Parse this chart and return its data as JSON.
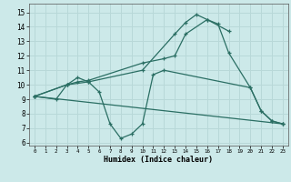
{
  "xlabel": "Humidex (Indice chaleur)",
  "xlim": [
    -0.5,
    23.5
  ],
  "ylim": [
    5.8,
    15.6
  ],
  "xticks": [
    0,
    1,
    2,
    3,
    4,
    5,
    6,
    7,
    8,
    9,
    10,
    11,
    12,
    13,
    14,
    15,
    16,
    17,
    18,
    19,
    20,
    21,
    22,
    23
  ],
  "yticks": [
    6,
    7,
    8,
    9,
    10,
    11,
    12,
    13,
    14,
    15
  ],
  "line_color": "#2a6e63",
  "bg_color": "#cce9e9",
  "grid_color": "#b8d8d8",
  "series": [
    {
      "x": [
        0,
        3,
        4,
        5,
        10,
        13,
        14,
        15,
        16,
        18
      ],
      "y": [
        9.2,
        10.0,
        10.5,
        10.2,
        11.0,
        13.5,
        14.3,
        14.85,
        14.5,
        13.7
      ]
    },
    {
      "x": [
        0,
        2,
        3,
        4,
        5,
        10,
        12,
        13,
        14,
        16,
        17,
        18,
        20,
        21,
        22,
        23
      ],
      "y": [
        9.2,
        9.0,
        10.0,
        10.2,
        10.3,
        11.5,
        11.8,
        12.0,
        13.5,
        14.5,
        14.2,
        12.2,
        9.8,
        8.2,
        7.5,
        7.3
      ]
    },
    {
      "x": [
        0,
        3,
        5,
        6,
        7,
        8,
        9,
        10,
        11,
        12,
        20,
        21,
        22,
        23
      ],
      "y": [
        9.2,
        10.0,
        10.2,
        9.5,
        7.3,
        6.3,
        6.6,
        7.3,
        10.7,
        11.0,
        9.8,
        8.2,
        7.5,
        7.3
      ]
    },
    {
      "x": [
        0,
        23
      ],
      "y": [
        9.2,
        7.3
      ]
    }
  ]
}
